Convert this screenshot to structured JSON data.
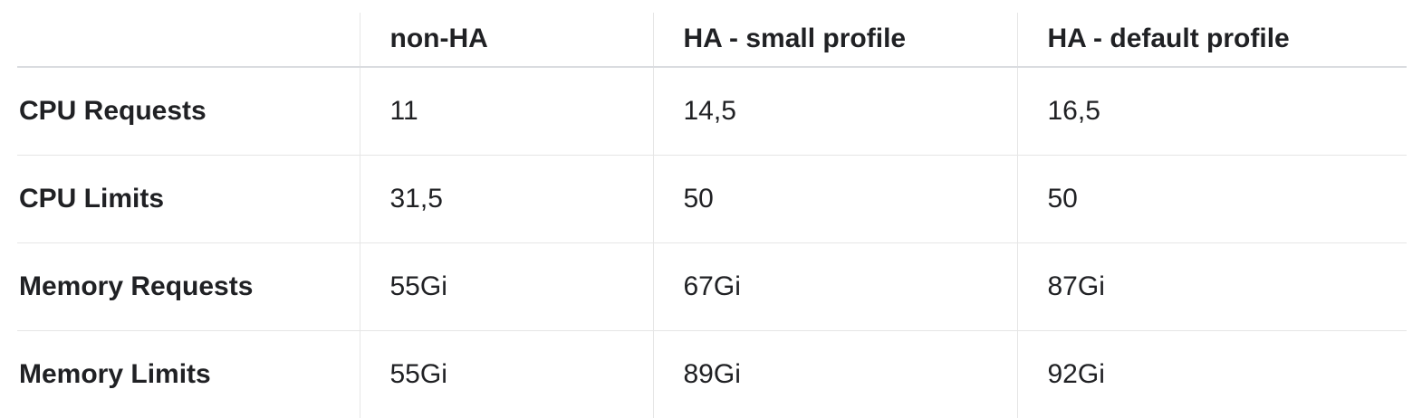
{
  "table": {
    "headers": [
      "",
      "non-HA",
      "HA - small profile",
      "HA - default profile"
    ],
    "rows": [
      {
        "label": "CPU Requests",
        "values": [
          "11",
          "14,5",
          "16,5"
        ]
      },
      {
        "label": "CPU Limits",
        "values": [
          "31,5",
          "50",
          "50"
        ]
      },
      {
        "label": "Memory Requests",
        "values": [
          "55Gi",
          "67Gi",
          "87Gi"
        ]
      },
      {
        "label": "Memory Limits",
        "values": [
          "55Gi",
          "89Gi",
          "92Gi"
        ]
      }
    ]
  }
}
